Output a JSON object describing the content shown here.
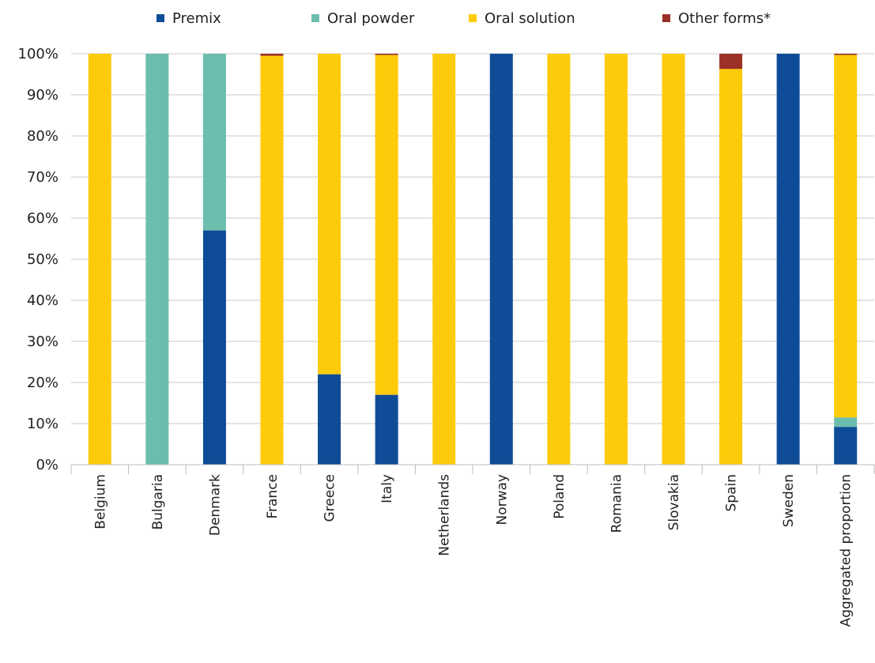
{
  "chart_data": {
    "type": "bar",
    "stacked": true,
    "title": "",
    "xlabel": "",
    "ylabel": "",
    "ylim": [
      0,
      100
    ],
    "y_tick_labels": [
      "0%",
      "10%",
      "20%",
      "30%",
      "40%",
      "50%",
      "60%",
      "70%",
      "80%",
      "90%",
      "100%"
    ],
    "grid": true,
    "legend_position": "top",
    "categories": [
      "Belgium",
      "Bulgaria",
      "Denmark",
      "France",
      "Greece",
      "Italy",
      "Netherlands",
      "Norway",
      "Poland",
      "Romania",
      "Slovakia",
      "Spain",
      "Sweden",
      "Aggregated proportion"
    ],
    "series": [
      {
        "name": "Premix",
        "color": "#0f4c97",
        "values": [
          0,
          0,
          57,
          0,
          22,
          17,
          0,
          100,
          0,
          0,
          0,
          0,
          100,
          9.2
        ]
      },
      {
        "name": "Oral powder",
        "color": "#6bbdad",
        "values": [
          0,
          100,
          43,
          0,
          0,
          0,
          0,
          0,
          0,
          0,
          0,
          0,
          0,
          2.3
        ]
      },
      {
        "name": "Oral solution",
        "color": "#fecb0a",
        "values": [
          100,
          0,
          0,
          99.5,
          78,
          82.7,
          100,
          0,
          100,
          100,
          100,
          96.3,
          0,
          88.2
        ]
      },
      {
        "name": "Other forms*",
        "color": "#9c3127",
        "values": [
          0,
          0,
          0,
          0.5,
          0,
          0.3,
          0,
          0,
          0,
          0,
          0,
          3.7,
          0,
          0.3
        ]
      }
    ]
  }
}
